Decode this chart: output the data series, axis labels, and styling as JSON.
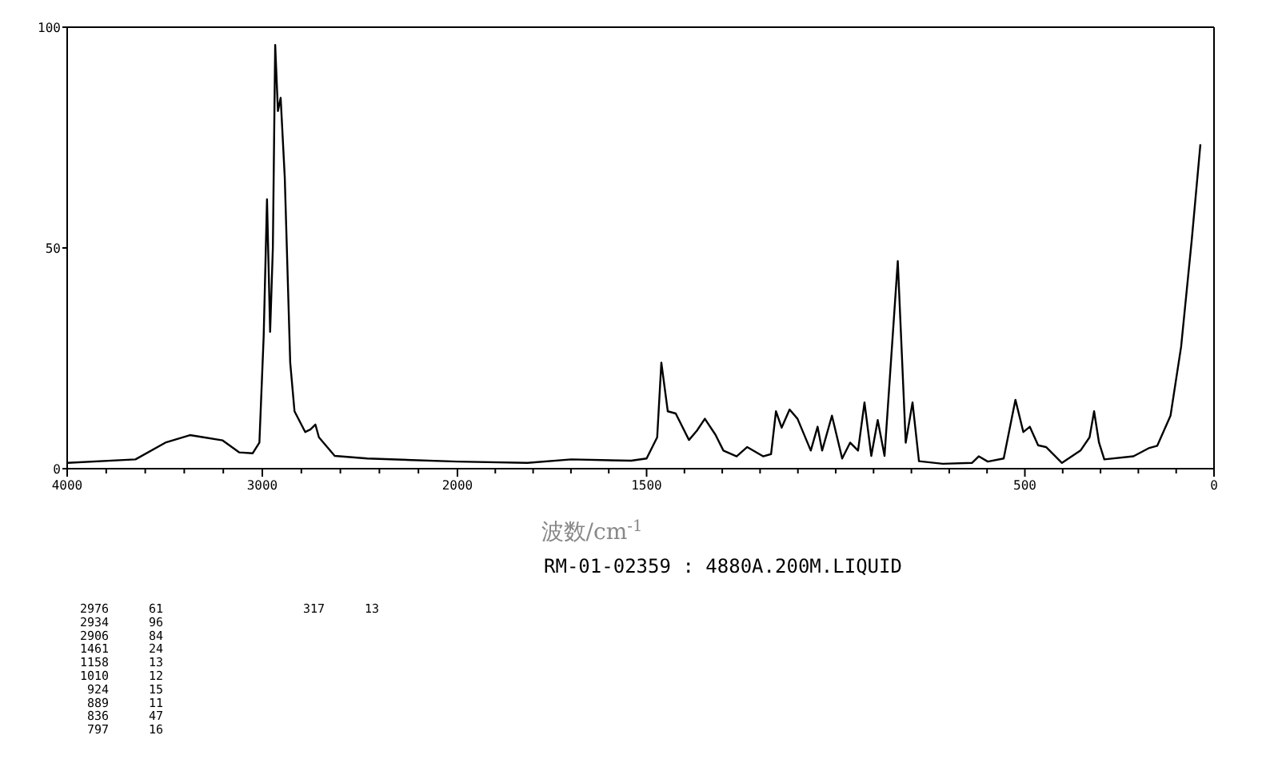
{
  "chart_data": [
    {
      "type": "line",
      "x": [
        4000,
        3650,
        3497,
        3371,
        3301,
        3203,
        3119,
        3049,
        3015,
        2993,
        2976,
        2960,
        2946,
        2934,
        2920,
        2906,
        2885,
        2857,
        2835,
        2780,
        2753,
        2728,
        2710,
        2629,
        2462,
        2000
      ],
      "series": [
        {
          "color": "#000000",
          "values": [
            1.3,
            2.1,
            5.9,
            7.6,
            7.1,
            6.4,
            3.7,
            3.5,
            5.9,
            30,
            61,
            31,
            50,
            96,
            81,
            84,
            66,
            24,
            13,
            8.3,
            8.9,
            10,
            7.1,
            2.9,
            2.3,
            1.6
          ]
        }
      ],
      "xlim": [
        4000,
        2000
      ],
      "xticks": [
        4000,
        {
          "value": 3800,
          "label": null
        },
        {
          "value": 3600,
          "label": null
        },
        {
          "value": 3400,
          "label": null
        },
        {
          "value": 3200,
          "label": null
        },
        3000,
        {
          "value": 2800,
          "label": null
        },
        {
          "value": 2600,
          "label": null
        },
        {
          "value": 2400,
          "label": null
        },
        {
          "value": 2200,
          "label": null
        }
      ],
      "ylim": [
        0,
        100
      ],
      "yticks": [
        0,
        50,
        100
      ],
      "annotations": [
        "2976 61",
        "2934 96",
        "2906 84",
        "1461 24",
        "1158 13",
        "1010 12",
        "924 15",
        "889 11",
        "836 47",
        "797 16",
        "317 13"
      ]
    },
    {
      "type": "line",
      "xlabel": "波数/cm$^{-1}$",
      "subtitle": "RM-01-02359 : 4880A.200M.LIQUID",
      "x": [
        2000,
        1815,
        1699,
        1541,
        1500,
        1472,
        1461,
        1444,
        1423,
        1388,
        1367,
        1346,
        1318,
        1297,
        1262,
        1234,
        1192,
        1171,
        1158,
        1143,
        1122,
        1101,
        1066,
        1048,
        1036,
        1010,
        983,
        962,
        941,
        924,
        906,
        889,
        871,
        836,
        815,
        797,
        780,
        717,
        640,
        622,
        598,
        556,
        525,
        504,
        487,
        465,
        444,
        402,
        353,
        329,
        317,
        304,
        290,
        213,
        171,
        150,
        115,
        87,
        59,
        36
      ],
      "series": [
        {
          "color": "#000000",
          "values": [
            1.6,
            1.3,
            2.1,
            1.8,
            2.3,
            7.1,
            24,
            13,
            12.5,
            6.5,
            8.6,
            11.3,
            7.7,
            4.1,
            2.8,
            4.9,
            2.8,
            3.3,
            13,
            9.3,
            13.4,
            11.3,
            4.1,
            9.5,
            4.1,
            12,
            2.3,
            5.9,
            4.1,
            15,
            2.9,
            11,
            2.9,
            47,
            5.9,
            15,
            1.7,
            1.1,
            1.3,
            2.8,
            1.6,
            2.3,
            15.6,
            8.3,
            9.5,
            5.3,
            4.9,
            1.3,
            4.1,
            7.1,
            13,
            5.9,
            2.1,
            2.8,
            4.7,
            5.2,
            12,
            27.6,
            51.7,
            73.5
          ]
        }
      ],
      "xlim": [
        2000,
        0
      ],
      "xticks": [
        2000,
        {
          "value": 1900,
          "label": null
        },
        {
          "value": 1800,
          "label": null
        },
        {
          "value": 1700,
          "label": null
        },
        {
          "value": 1600,
          "label": null
        },
        1500,
        {
          "value": 1400,
          "label": null
        },
        {
          "value": 1300,
          "label": null
        },
        {
          "value": 1200,
          "label": null
        },
        {
          "value": 1100,
          "label": null
        },
        {
          "value": 1000,
          "label": null
        },
        {
          "value": 900,
          "label": null
        },
        {
          "value": 800,
          "label": null
        },
        {
          "value": 700,
          "label": null
        },
        {
          "value": 600,
          "label": null
        },
        500,
        {
          "value": 400,
          "label": null
        },
        {
          "value": 300,
          "label": null
        },
        {
          "value": 200,
          "label": null
        },
        {
          "value": 100,
          "label": null
        },
        0
      ],
      "ylim": [
        0,
        100
      ],
      "tick_labels": "x"
    }
  ]
}
